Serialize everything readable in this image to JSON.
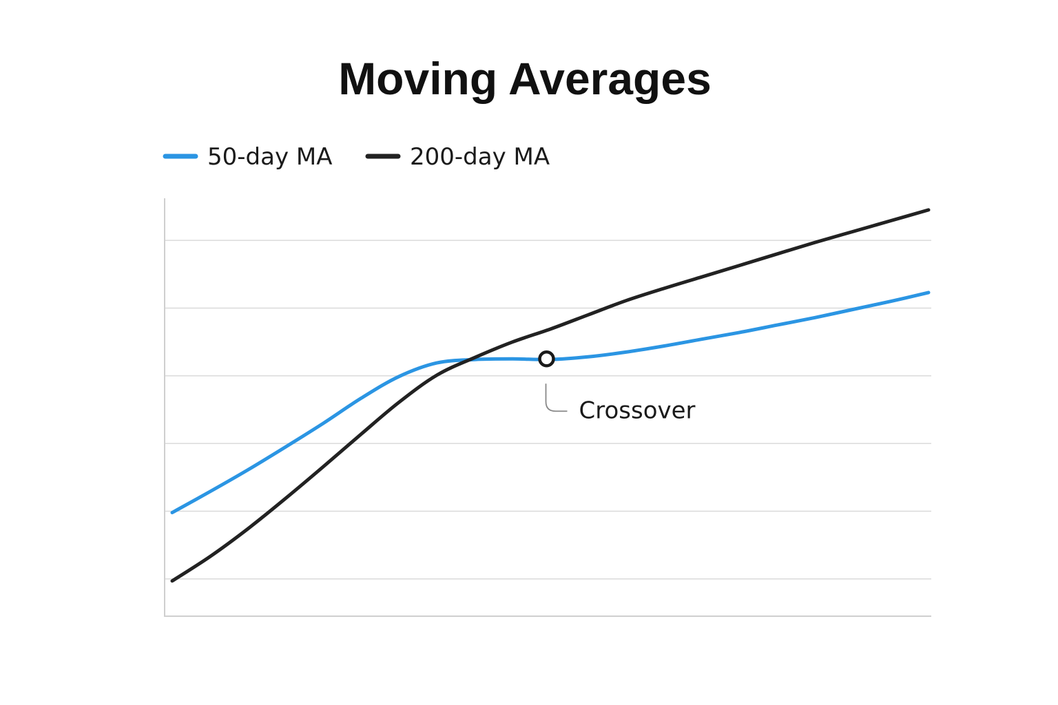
{
  "chart_data": {
    "type": "line",
    "title": "Moving Averages",
    "xlabel": "",
    "ylabel": "",
    "xlim": [
      0,
      100
    ],
    "ylim": [
      0,
      6
    ],
    "gridlines_y": [
      0.5,
      1.5,
      2.5,
      3.5,
      4.5,
      5.5
    ],
    "grid": true,
    "legend_position": "top-left",
    "series": [
      {
        "name": "50-day MA",
        "color": "#2b95e3",
        "x": [
          0,
          5,
          10,
          15,
          20,
          25,
          30,
          35,
          40,
          45,
          50,
          55,
          60,
          65,
          70,
          75,
          80,
          85,
          90,
          95,
          100
        ],
        "y": [
          1.48,
          1.79,
          2.11,
          2.45,
          2.8,
          3.17,
          3.49,
          3.69,
          3.74,
          3.75,
          3.74,
          3.78,
          3.85,
          3.94,
          4.04,
          4.14,
          4.25,
          4.36,
          4.48,
          4.6,
          4.73
        ]
      },
      {
        "name": "200-day MA",
        "color": "#222222",
        "x": [
          0,
          5,
          10,
          15,
          20,
          25,
          30,
          35,
          40,
          45,
          50,
          55,
          60,
          65,
          70,
          75,
          80,
          85,
          90,
          95,
          100
        ],
        "y": [
          0.47,
          0.83,
          1.24,
          1.69,
          2.16,
          2.64,
          3.11,
          3.51,
          3.77,
          4.0,
          4.19,
          4.4,
          4.61,
          4.79,
          4.96,
          5.13,
          5.3,
          5.47,
          5.63,
          5.79,
          5.95
        ]
      }
    ],
    "annotations": [
      {
        "text": "Crossover",
        "x": 49.5,
        "y": 3.75
      }
    ]
  }
}
